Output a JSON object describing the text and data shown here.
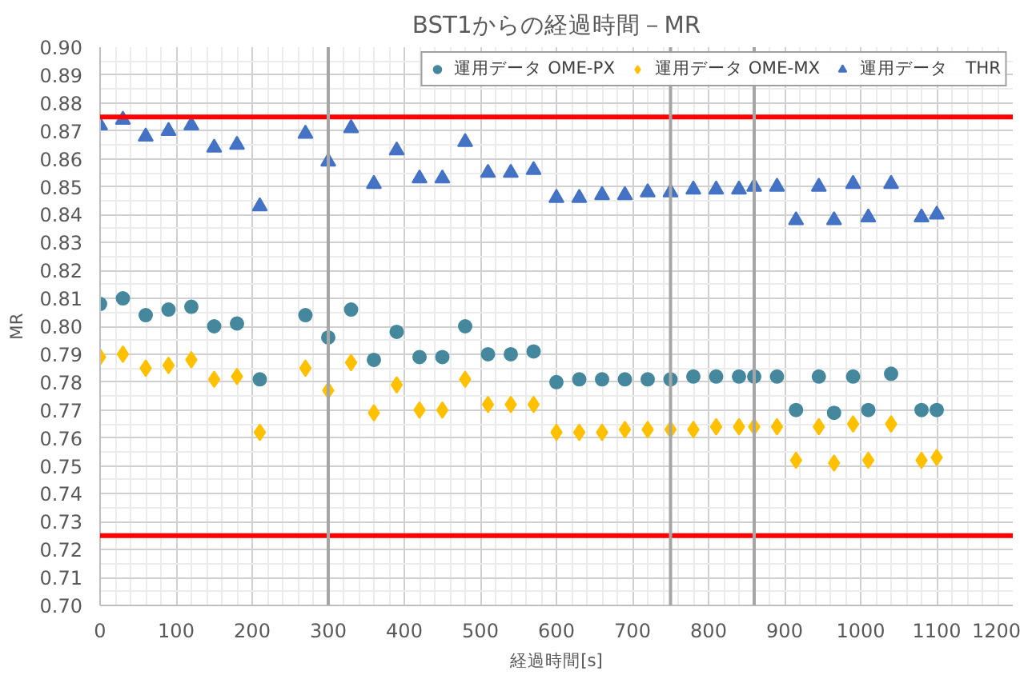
{
  "chart_data": {
    "type": "scatter",
    "title": "BST1からの経過時間－MR",
    "xlabel": "経過時間[s]",
    "ylabel": "MR",
    "x": [
      0,
      30,
      60,
      90,
      120,
      150,
      180,
      210,
      270,
      300,
      330,
      360,
      390,
      420,
      450,
      480,
      510,
      540,
      570,
      600,
      630,
      660,
      690,
      720,
      750,
      780,
      810,
      840,
      860,
      890,
      915,
      945,
      965,
      990,
      1010,
      1040,
      1080,
      1100
    ],
    "series": [
      {
        "name": "運用データ OME-PX",
        "color": "#45889e",
        "marker": "circle",
        "values": [
          0.808,
          0.81,
          0.804,
          0.806,
          0.807,
          0.8,
          0.801,
          0.781,
          0.804,
          0.796,
          0.806,
          0.788,
          0.798,
          0.789,
          0.789,
          0.8,
          0.79,
          0.79,
          0.791,
          0.78,
          0.781,
          0.781,
          0.781,
          0.781,
          0.781,
          0.782,
          0.782,
          0.782,
          0.782,
          0.782,
          0.77,
          0.782,
          0.769,
          0.782,
          0.77,
          0.783,
          0.77,
          0.77
        ]
      },
      {
        "name": "運用データ OME-MX",
        "color": "#ffc000",
        "marker": "diamond",
        "values": [
          0.789,
          0.79,
          0.785,
          0.786,
          0.788,
          0.781,
          0.782,
          0.762,
          0.785,
          0.777,
          0.787,
          0.769,
          0.779,
          0.77,
          0.77,
          0.781,
          0.772,
          0.772,
          0.772,
          0.762,
          0.762,
          0.762,
          0.763,
          0.763,
          0.763,
          0.763,
          0.764,
          0.764,
          0.764,
          0.764,
          0.752,
          0.764,
          0.751,
          0.765,
          0.752,
          0.765,
          0.752,
          0.753
        ]
      },
      {
        "name": "運用データ　THR",
        "color": "#4472c4",
        "marker": "triangle",
        "values": [
          0.872,
          0.874,
          0.868,
          0.87,
          0.872,
          0.864,
          0.865,
          0.843,
          0.869,
          0.859,
          0.871,
          0.851,
          0.863,
          0.853,
          0.853,
          0.866,
          0.855,
          0.855,
          0.856,
          0.846,
          0.846,
          0.847,
          0.847,
          0.848,
          0.848,
          0.849,
          0.849,
          0.849,
          0.85,
          0.85,
          0.838,
          0.85,
          0.838,
          0.851,
          0.839,
          0.851,
          0.839,
          0.84
        ]
      }
    ],
    "xlim": [
      0,
      1200
    ],
    "xticks": [
      0,
      100,
      200,
      300,
      400,
      500,
      600,
      700,
      800,
      900,
      1000,
      1100,
      1200
    ],
    "ylim": [
      0.7,
      0.9
    ],
    "yticks": [
      {
        "value": 0.7,
        "label": "0.70"
      },
      0.71,
      0.72,
      0.73,
      0.74,
      0.75,
      0.76,
      0.77,
      0.78,
      0.79,
      {
        "value": 0.8,
        "label": "0.80"
      },
      0.81,
      0.82,
      0.83,
      0.84,
      0.85,
      0.86,
      0.87,
      0.88,
      0.89,
      {
        "value": 0.9,
        "label": "0.90"
      }
    ],
    "ref_lines": [
      {
        "axis": "y",
        "value": 0.875,
        "color": "#ff0000"
      },
      {
        "axis": "y",
        "value": 0.725,
        "color": "#ff0000"
      },
      {
        "axis": "x",
        "value": 300,
        "color": "#a6a6a6"
      },
      {
        "axis": "x",
        "value": 750,
        "color": "#a6a6a6"
      },
      {
        "axis": "x",
        "value": 860,
        "color": "#a6a6a6"
      }
    ],
    "grid": true,
    "legend": "top right"
  }
}
